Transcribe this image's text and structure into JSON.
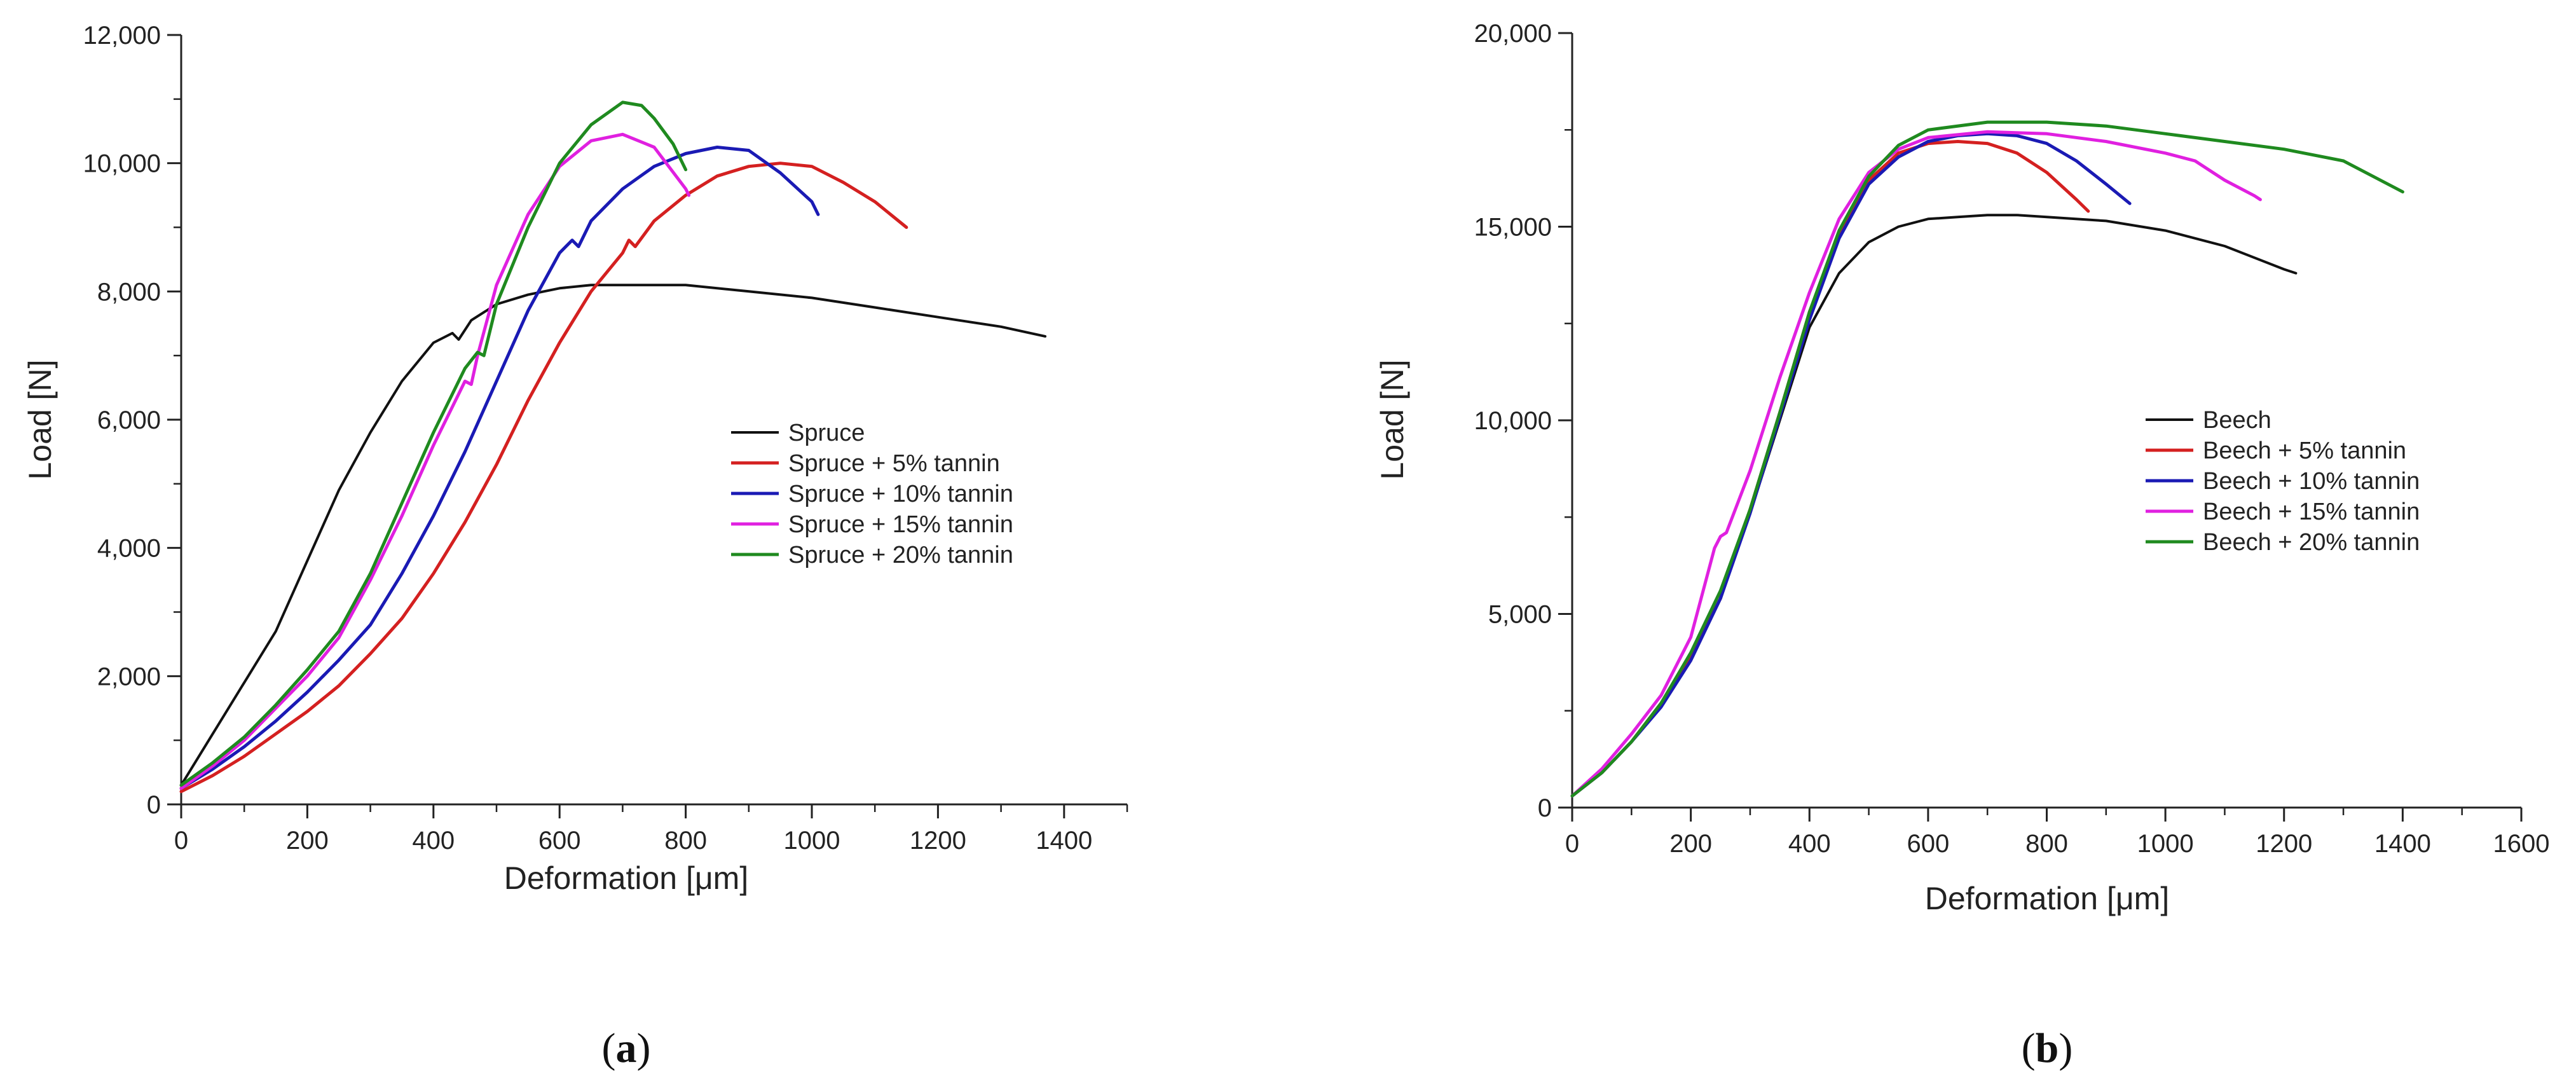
{
  "chart_data": [
    {
      "type": "line",
      "panel_label": {
        "open": "(",
        "letter": "a",
        "close": ")"
      },
      "title": "",
      "xlabel": "Deformation [μm]",
      "ylabel": "Load [N]",
      "xlim": [
        0,
        1500
      ],
      "ylim": [
        0,
        12000
      ],
      "xticks": [
        0,
        200,
        400,
        600,
        800,
        1000,
        1200,
        1400
      ],
      "yticks": [
        0,
        2000,
        4000,
        6000,
        8000,
        10000,
        12000
      ],
      "xtick_labels": [
        "0",
        "200",
        "400",
        "600",
        "800",
        "1000",
        "1200",
        "1400"
      ],
      "ytick_labels": [
        "0",
        "2,000",
        "4,000",
        "6,000",
        "8,000",
        "10,000",
        "12,000"
      ],
      "grid": false,
      "legend_position": "center-right",
      "series": [
        {
          "name": "Spruce",
          "color": "#111111",
          "x": [
            0,
            50,
            100,
            150,
            200,
            250,
            300,
            350,
            400,
            430,
            440,
            460,
            500,
            550,
            600,
            650,
            700,
            800,
            900,
            1000,
            1100,
            1200,
            1300,
            1370
          ],
          "y": [
            300,
            1100,
            1900,
            2700,
            3800,
            4900,
            5800,
            6600,
            7200,
            7350,
            7250,
            7550,
            7800,
            7950,
            8050,
            8100,
            8100,
            8100,
            8000,
            7900,
            7750,
            7600,
            7450,
            7300
          ]
        },
        {
          "name": "Spruce + 5% tannin",
          "color": "#d42020",
          "x": [
            0,
            50,
            100,
            150,
            200,
            250,
            300,
            350,
            400,
            450,
            500,
            550,
            600,
            650,
            700,
            710,
            720,
            750,
            800,
            850,
            900,
            950,
            1000,
            1050,
            1100,
            1150
          ],
          "y": [
            200,
            450,
            750,
            1100,
            1450,
            1850,
            2350,
            2900,
            3600,
            4400,
            5300,
            6300,
            7200,
            8000,
            8600,
            8800,
            8700,
            9100,
            9500,
            9800,
            9950,
            10000,
            9950,
            9700,
            9400,
            9000
          ]
        },
        {
          "name": "Spruce + 10% tannin",
          "color": "#1a1ab4",
          "x": [
            0,
            50,
            100,
            150,
            200,
            250,
            300,
            350,
            400,
            450,
            500,
            550,
            600,
            620,
            630,
            650,
            700,
            750,
            800,
            850,
            900,
            950,
            1000,
            1010
          ],
          "y": [
            250,
            550,
            900,
            1300,
            1750,
            2250,
            2800,
            3600,
            4500,
            5500,
            6600,
            7700,
            8600,
            8800,
            8700,
            9100,
            9600,
            9950,
            10150,
            10250,
            10200,
            9850,
            9400,
            9200
          ]
        },
        {
          "name": "Spruce + 15% tannin",
          "color": "#e020e0",
          "x": [
            0,
            50,
            100,
            150,
            200,
            250,
            300,
            350,
            400,
            450,
            460,
            470,
            500,
            550,
            600,
            650,
            700,
            750,
            800,
            805
          ],
          "y": [
            250,
            600,
            1000,
            1500,
            2000,
            2600,
            3500,
            4500,
            5600,
            6600,
            6550,
            7000,
            8100,
            9200,
            9950,
            10350,
            10450,
            10250,
            9600,
            9500
          ]
        },
        {
          "name": "Spruce + 20% tannin",
          "color": "#1f8a1f",
          "x": [
            0,
            50,
            100,
            150,
            200,
            250,
            300,
            350,
            400,
            450,
            470,
            480,
            500,
            550,
            600,
            650,
            700,
            730,
            750,
            780,
            800
          ],
          "y": [
            300,
            650,
            1050,
            1550,
            2100,
            2700,
            3600,
            4700,
            5800,
            6800,
            7050,
            7000,
            7800,
            9000,
            10000,
            10600,
            10950,
            10900,
            10700,
            10300,
            9900
          ]
        }
      ]
    },
    {
      "type": "line",
      "panel_label": {
        "open": "(",
        "letter": "b",
        "close": ")"
      },
      "title": "",
      "xlabel": "Deformation [μm]",
      "ylabel": "Load [N]",
      "xlim": [
        0,
        1600
      ],
      "ylim": [
        0,
        20000
      ],
      "xticks": [
        0,
        200,
        400,
        600,
        800,
        1000,
        1200,
        1400,
        1600
      ],
      "yticks": [
        0,
        5000,
        10000,
        15000,
        20000
      ],
      "xtick_labels": [
        "0",
        "200",
        "400",
        "600",
        "800",
        "1000",
        "1200",
        "1400",
        "1600"
      ],
      "ytick_labels": [
        "0",
        "5,000",
        "10,000",
        "15,000",
        "20,000"
      ],
      "grid": false,
      "legend_position": "center-right",
      "series": [
        {
          "name": "Beech",
          "color": "#111111",
          "x": [
            0,
            50,
            100,
            150,
            200,
            250,
            300,
            350,
            400,
            450,
            500,
            550,
            600,
            650,
            700,
            750,
            800,
            900,
            1000,
            1100,
            1200,
            1220
          ],
          "y": [
            300,
            900,
            1700,
            2600,
            3900,
            5400,
            7600,
            10000,
            12400,
            13800,
            14600,
            15000,
            15200,
            15250,
            15300,
            15300,
            15250,
            15150,
            14900,
            14500,
            13900,
            13800
          ]
        },
        {
          "name": "Beech + 5% tannin",
          "color": "#d42020",
          "x": [
            0,
            50,
            100,
            150,
            200,
            250,
            300,
            350,
            400,
            450,
            500,
            550,
            600,
            650,
            700,
            750,
            800,
            850,
            870
          ],
          "y": [
            300,
            900,
            1700,
            2700,
            3900,
            5400,
            7700,
            10200,
            12800,
            14800,
            16200,
            16900,
            17150,
            17200,
            17150,
            16900,
            16400,
            15700,
            15400
          ]
        },
        {
          "name": "Beech + 10% tannin",
          "color": "#1a1ab4",
          "x": [
            0,
            50,
            100,
            150,
            200,
            250,
            300,
            350,
            400,
            450,
            500,
            550,
            600,
            650,
            700,
            750,
            800,
            850,
            900,
            940
          ],
          "y": [
            300,
            900,
            1700,
            2600,
            3800,
            5400,
            7600,
            10100,
            12600,
            14700,
            16100,
            16800,
            17200,
            17350,
            17400,
            17350,
            17150,
            16700,
            16100,
            15600
          ]
        },
        {
          "name": "Beech + 15% tannin",
          "color": "#e020e0",
          "x": [
            0,
            50,
            100,
            150,
            200,
            240,
            250,
            260,
            300,
            350,
            400,
            450,
            500,
            550,
            600,
            700,
            800,
            900,
            1000,
            1050,
            1100,
            1150,
            1160
          ],
          "y": [
            300,
            1000,
            1900,
            2900,
            4400,
            6700,
            7000,
            7100,
            8700,
            11100,
            13300,
            15200,
            16400,
            17000,
            17300,
            17450,
            17400,
            17200,
            16900,
            16700,
            16200,
            15800,
            15700
          ]
        },
        {
          "name": "Beech + 20% tannin",
          "color": "#1f8a1f",
          "x": [
            0,
            50,
            100,
            150,
            200,
            250,
            300,
            350,
            400,
            450,
            500,
            550,
            600,
            700,
            800,
            900,
            1000,
            1100,
            1200,
            1300,
            1350,
            1400
          ],
          "y": [
            300,
            900,
            1700,
            2700,
            4000,
            5600,
            7700,
            10200,
            12800,
            14900,
            16300,
            17100,
            17500,
            17700,
            17700,
            17600,
            17400,
            17200,
            17000,
            16700,
            16300,
            15900
          ]
        }
      ]
    }
  ]
}
